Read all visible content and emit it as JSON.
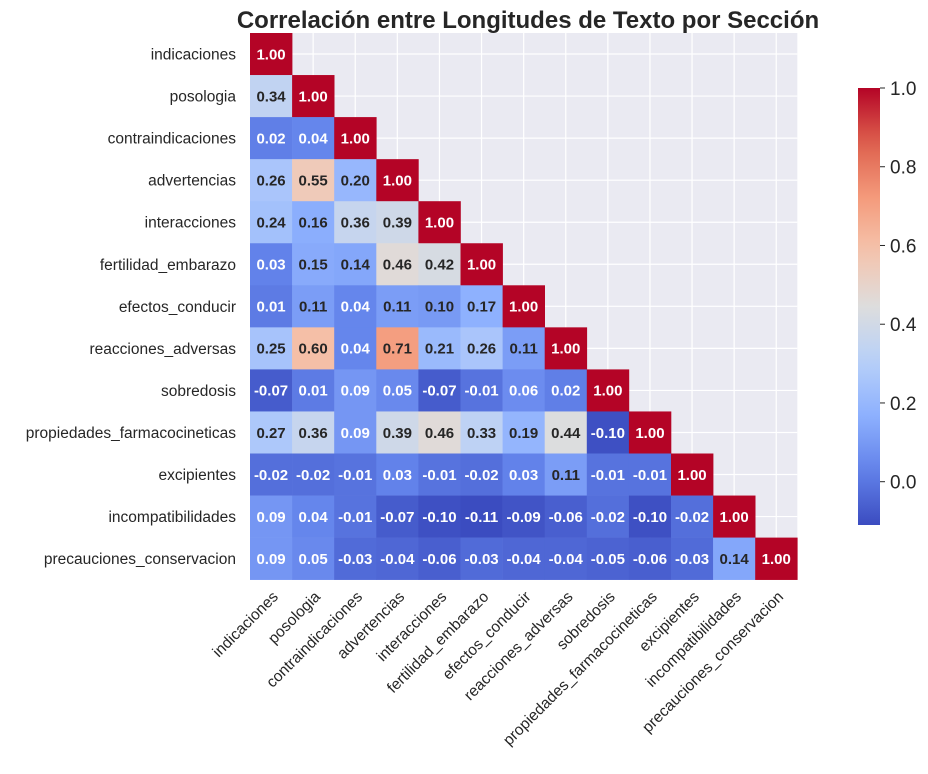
{
  "chart_data": {
    "type": "heatmap",
    "title": "Correlación entre Longitudes de Texto por Sección",
    "labels": [
      "indicaciones",
      "posologia",
      "contraindicaciones",
      "advertencias",
      "interacciones",
      "fertilidad_embarazo",
      "efectos_conducir",
      "reacciones_adversas",
      "sobredosis",
      "propiedades_farmacocineticas",
      "excipientes",
      "incompatibilidades",
      "precauciones_conservacion"
    ],
    "matrix": [
      [
        1.0
      ],
      [
        0.34,
        1.0
      ],
      [
        0.02,
        0.04,
        1.0
      ],
      [
        0.26,
        0.55,
        0.2,
        1.0
      ],
      [
        0.24,
        0.16,
        0.36,
        0.39,
        1.0
      ],
      [
        0.03,
        0.15,
        0.14,
        0.46,
        0.42,
        1.0
      ],
      [
        0.01,
        0.11,
        0.04,
        0.11,
        0.1,
        0.17,
        1.0
      ],
      [
        0.25,
        0.6,
        0.04,
        0.71,
        0.21,
        0.26,
        0.11,
        1.0
      ],
      [
        -0.07,
        0.01,
        0.09,
        0.05,
        -0.07,
        -0.01,
        0.06,
        0.02,
        1.0
      ],
      [
        0.27,
        0.36,
        0.09,
        0.39,
        0.46,
        0.33,
        0.19,
        0.44,
        -0.1,
        1.0
      ],
      [
        -0.02,
        -0.02,
        -0.01,
        0.03,
        -0.01,
        -0.02,
        0.03,
        0.11,
        -0.01,
        -0.01,
        1.0
      ],
      [
        0.09,
        0.04,
        -0.01,
        -0.07,
        -0.1,
        -0.11,
        -0.09,
        -0.06,
        -0.02,
        -0.1,
        -0.02,
        1.0
      ],
      [
        0.09,
        0.05,
        -0.03,
        -0.04,
        -0.06,
        -0.03,
        -0.04,
        -0.04,
        -0.05,
        -0.06,
        -0.03,
        0.14,
        1.0
      ]
    ],
    "value_format": "0.00",
    "colormap": "coolwarm",
    "vmin": -0.11,
    "vmax": 1.0,
    "colorbar": {
      "ticks": [
        0.0,
        0.2,
        0.4,
        0.6,
        0.8,
        1.0
      ],
      "tick_labels": [
        "0.0",
        "0.2",
        "0.4",
        "0.6",
        "0.8",
        "1.0"
      ],
      "placement": "right"
    },
    "mask": "upper-triangle",
    "grid": true,
    "colors": {
      "background": "#eaeaf2",
      "grid": "#ffffff",
      "text": "#262626"
    }
  }
}
